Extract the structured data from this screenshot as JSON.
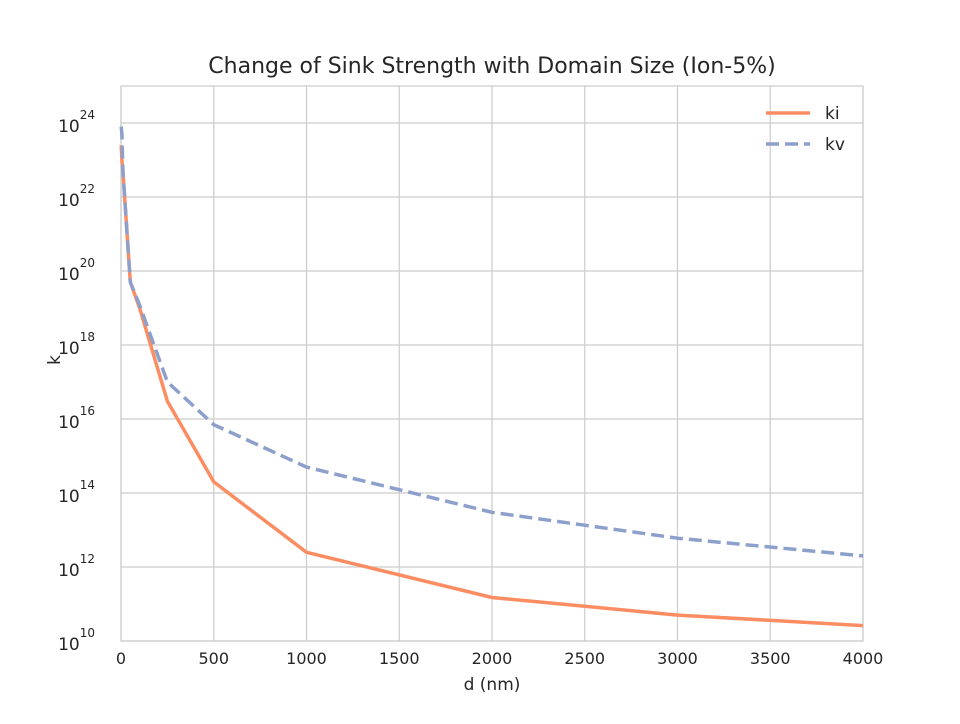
{
  "chart_data": {
    "type": "line",
    "title": "Change of Sink Strength with Domain Size (Ion-5%)",
    "xlabel": "d (nm)",
    "ylabel": "k",
    "xlim": [
      0,
      4000
    ],
    "ylim": [
      10000000000.0,
      1e+25
    ],
    "yscale": "log",
    "grid": true,
    "legend_placement": "top-right",
    "x_ticks": [
      "0",
      "500",
      "1000",
      "1500",
      "2000",
      "2500",
      "3000",
      "3500",
      "4000"
    ],
    "y_ticks": [
      {
        "base": "10",
        "exp": "10"
      },
      {
        "base": "10",
        "exp": "12"
      },
      {
        "base": "10",
        "exp": "14"
      },
      {
        "base": "10",
        "exp": "16"
      },
      {
        "base": "10",
        "exp": "18"
      },
      {
        "base": "10",
        "exp": "20"
      },
      {
        "base": "10",
        "exp": "22"
      },
      {
        "base": "10",
        "exp": "24"
      }
    ],
    "series": [
      {
        "name": "ki",
        "color": "#fc8d62",
        "style": "solid",
        "x": [
          1,
          5,
          10,
          50,
          100,
          250,
          500,
          1000,
          2000,
          3000,
          4000
        ],
        "y": [
          2.5e+23,
          1e+23,
          5e+22,
          5e+19,
          1e+19,
          3e+16,
          200000000000000.0,
          2500000000000.0,
          150000000000.0,
          50000000000.0,
          26000000000.0
        ]
      },
      {
        "name": "kv",
        "color": "#8da0cb",
        "style": "dashed",
        "x": [
          1,
          5,
          10,
          50,
          100,
          250,
          500,
          1000,
          2000,
          3000,
          4000
        ],
        "y": [
          8e+23,
          5e+23,
          5e+22,
          5e+19,
          1.2e+19,
          1e+17,
          7000000000000000.0,
          500000000000000.0,
          30000000000000.0,
          6000000000000.0,
          2000000000000.0
        ]
      }
    ]
  }
}
